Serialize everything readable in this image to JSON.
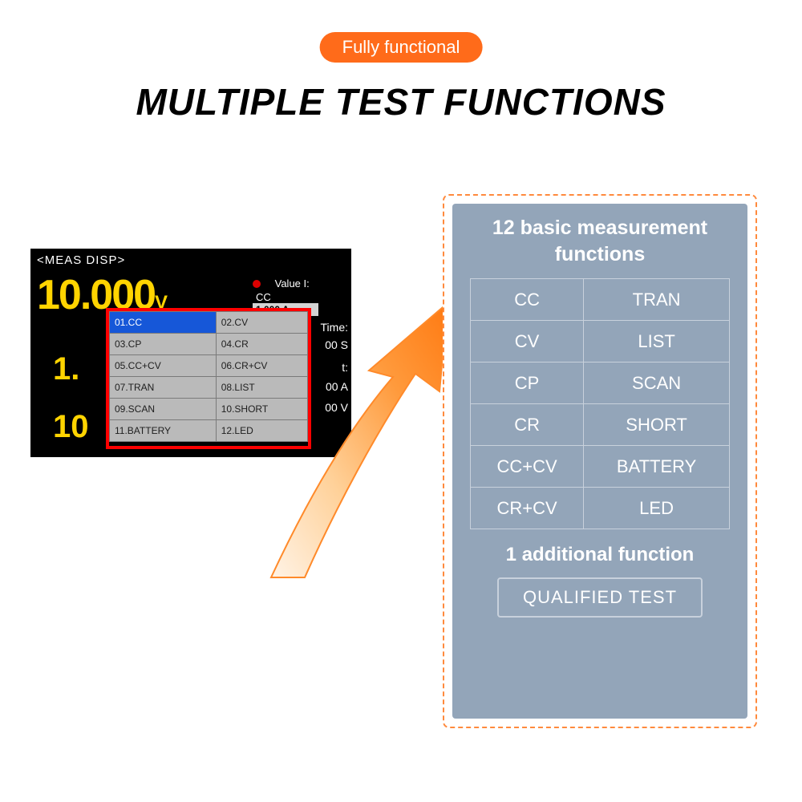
{
  "badge_text": "Fully functional",
  "main_title": "MULTIPLE TEST FUNCTIONS",
  "device": {
    "header": "<MEAS DISP>",
    "big_value": "10.000",
    "big_unit": "V",
    "mid_value_1": "1.",
    "mid_value_2": "10",
    "cc_label": "CC",
    "value_label": "Value I:",
    "value_box": "1.000 A",
    "time_label": "Time:",
    "time_val": "00 S",
    "t_label": "t:",
    "a_line": "00 A",
    "v_line": "00 V"
  },
  "popup_rows": [
    [
      "01.CC",
      "02.CV"
    ],
    [
      "03.CP",
      "04.CR"
    ],
    [
      "05.CC+CV",
      "06.CR+CV"
    ],
    [
      "07.TRAN",
      "08.LIST"
    ],
    [
      "09.SCAN",
      "10.SHORT"
    ],
    [
      "11.BATTERY",
      "12.LED"
    ]
  ],
  "panel": {
    "title_line1": "12 basic measurement",
    "title_line2": "functions",
    "func_rows": [
      [
        "CC",
        "TRAN"
      ],
      [
        "CV",
        "LIST"
      ],
      [
        "CP",
        "SCAN"
      ],
      [
        "CR",
        "SHORT"
      ],
      [
        "CC+CV",
        "BATTERY"
      ],
      [
        "CR+CV",
        "LED"
      ]
    ],
    "sub_title": "1 additional function",
    "qualified": "QUALIFIED TEST"
  },
  "colors": {
    "accent": "#ff6b1a",
    "panel_bg": "#93a5b9",
    "panel_border": "#ff8a3d",
    "device_yellow": "#ffd400",
    "popup_sel": "#1657d8",
    "popup_border_red": "#ff0000"
  }
}
